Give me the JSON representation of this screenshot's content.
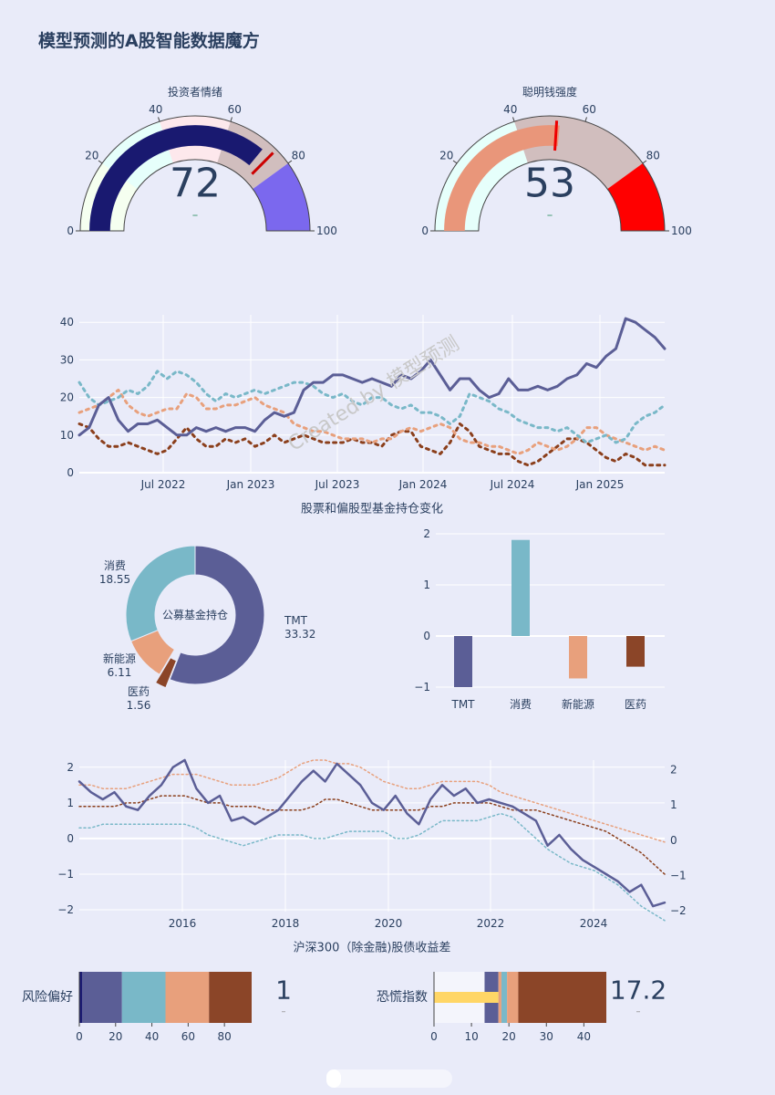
{
  "page": {
    "title": "模型预测的A股智能数据魔方",
    "watermark": "Created by 模型预测"
  },
  "chart_data": [
    {
      "type": "gauge",
      "id": "sentiment",
      "title": "投资者情绪",
      "value": 72,
      "delta": "–",
      "range": [
        0,
        100
      ],
      "ticks": [
        0,
        20,
        40,
        60,
        80,
        100
      ],
      "steps": [
        {
          "range": [
            0,
            20
          ],
          "color": "#f5fff0"
        },
        {
          "range": [
            20,
            40
          ],
          "color": "#e6fffb"
        },
        {
          "range": [
            40,
            60
          ],
          "color": "#fde8ec"
        },
        {
          "range": [
            60,
            80
          ],
          "color": "#d1bebe"
        },
        {
          "range": [
            80,
            100
          ],
          "color": "#7b68ee"
        }
      ],
      "bar_color": "#191970",
      "threshold": 75,
      "threshold_color": "#cc0000"
    },
    {
      "type": "gauge",
      "id": "smart-money",
      "title": "聪明钱强度",
      "value": 53,
      "delta": "–",
      "range": [
        0,
        100
      ],
      "ticks": [
        0,
        20,
        40,
        60,
        80,
        100
      ],
      "steps": [
        {
          "range": [
            0,
            20
          ],
          "color": "#e6fffb"
        },
        {
          "range": [
            20,
            40
          ],
          "color": "#e6fffb"
        },
        {
          "range": [
            40,
            80
          ],
          "color": "#d1bebe"
        },
        {
          "range": [
            80,
            100
          ],
          "color": "#ff0000"
        }
      ],
      "bar_color": "#e9967a",
      "threshold": 52,
      "threshold_color": "#ee0000"
    },
    {
      "type": "line",
      "id": "holdings",
      "title": "股票和偏股型基金持仓变化",
      "x_ticks": [
        "Jul 2022",
        "Jan 2023",
        "Jul 2023",
        "Jan 2024",
        "Jul 2024",
        "Jan 2025"
      ],
      "y_ticks": [
        0,
        10,
        20,
        30,
        40
      ],
      "ylim": [
        0,
        42
      ],
      "series": [
        {
          "color": "#5b5e96",
          "style": "solid",
          "values": [
            10,
            12,
            18,
            20,
            14,
            11,
            13,
            13,
            14,
            12,
            10,
            10,
            12,
            11,
            12,
            11,
            12,
            12,
            11,
            14,
            16,
            15,
            16,
            22,
            24,
            24,
            26,
            26,
            25,
            24,
            25,
            24,
            23,
            26,
            25,
            27,
            30,
            26,
            22,
            25,
            25,
            22,
            20,
            21,
            25,
            22,
            22,
            23,
            22,
            23,
            25,
            26,
            29,
            28,
            31,
            33,
            41,
            40,
            38,
            36,
            33
          ]
        },
        {
          "color": "#79b8c8",
          "style": "dot",
          "values": [
            24,
            20,
            18,
            19,
            20,
            22,
            21,
            23,
            27,
            25,
            27,
            26,
            24,
            21,
            19,
            21,
            20,
            21,
            22,
            21,
            22,
            23,
            24,
            24,
            23,
            21,
            20,
            21,
            19,
            18,
            20,
            20,
            18,
            17,
            18,
            16,
            16,
            15,
            13,
            15,
            21,
            20,
            19,
            17,
            16,
            14,
            13,
            12,
            12,
            11,
            12,
            10,
            8,
            9,
            10,
            8,
            9,
            13,
            15,
            16,
            18
          ]
        },
        {
          "color": "#e8a07c",
          "style": "dot",
          "values": [
            16,
            17,
            18,
            20,
            22,
            18,
            16,
            15,
            16,
            17,
            17,
            21,
            20,
            17,
            17,
            18,
            18,
            19,
            20,
            18,
            17,
            16,
            13,
            12,
            11,
            11,
            10,
            9,
            9,
            9,
            8,
            9,
            9,
            11,
            12,
            11,
            12,
            13,
            12,
            9,
            8,
            8,
            7,
            7,
            6,
            5,
            6,
            8,
            7,
            6,
            7,
            9,
            12,
            12,
            10,
            9,
            8,
            7,
            6,
            7,
            6
          ]
        },
        {
          "color": "#8b3f1c",
          "style": "dot",
          "values": [
            13,
            12,
            9,
            7,
            7,
            8,
            7,
            6,
            5,
            6,
            9,
            12,
            9,
            7,
            7,
            9,
            8,
            9,
            7,
            8,
            10,
            8,
            9,
            10,
            9,
            8,
            8,
            8,
            9,
            8,
            8,
            7,
            10,
            11,
            11,
            7,
            6,
            5,
            8,
            13,
            11,
            7,
            6,
            5,
            5,
            3,
            2,
            3,
            5,
            7,
            9,
            9,
            8,
            6,
            4,
            3,
            5,
            4,
            2,
            2,
            2
          ]
        }
      ]
    },
    {
      "type": "pie",
      "id": "fund-holdings",
      "center_label": "公募基金持仓",
      "slices": [
        {
          "name": "TMT",
          "value": 33.32,
          "color": "#5b5e96"
        },
        {
          "name": "医药",
          "value": 1.56,
          "color": "#8b4528"
        },
        {
          "name": "新能源",
          "value": 6.11,
          "color": "#e8a07c"
        },
        {
          "name": "消费",
          "value": 18.55,
          "color": "#79b8c8"
        }
      ],
      "value_labels": [
        "33.32",
        "1.56",
        "6.11",
        "18.55"
      ]
    },
    {
      "type": "bar",
      "id": "holding-change",
      "categories": [
        "TMT",
        "消费",
        "新能源",
        "医药"
      ],
      "values": [
        -1.0,
        1.88,
        -0.83,
        -0.6
      ],
      "colors": [
        "#5b5e96",
        "#79b8c8",
        "#e8a07c",
        "#8b4528"
      ],
      "y_ticks": [
        -1,
        0,
        1,
        2
      ],
      "ylim": [
        -1.1,
        2.1
      ]
    },
    {
      "type": "line",
      "id": "equity-bond-spread",
      "title": "沪深300（除金融)股债收益差",
      "x_ticks": [
        "2016",
        "2018",
        "2020",
        "2022",
        "2024"
      ],
      "y_ticks_left": [
        -2,
        -1,
        0,
        1,
        2
      ],
      "y_ticks_right": [
        -2,
        -1,
        0,
        1,
        2
      ],
      "series": [
        {
          "color": "#5b5e96",
          "style": "solid",
          "width": 2.5,
          "values": [
            1.6,
            1.3,
            1.1,
            1.3,
            0.9,
            0.8,
            1.2,
            1.5,
            2.0,
            2.2,
            1.4,
            1.0,
            1.2,
            0.5,
            0.6,
            0.4,
            0.6,
            0.8,
            1.2,
            1.6,
            1.9,
            1.6,
            2.1,
            1.8,
            1.5,
            1.0,
            0.8,
            1.2,
            0.7,
            0.4,
            1.1,
            1.5,
            1.2,
            1.4,
            1.0,
            1.1,
            1.0,
            0.9,
            0.7,
            0.5,
            -0.2,
            0.1,
            -0.3,
            -0.6,
            -0.8,
            -1.0,
            -1.2,
            -1.5,
            -1.3,
            -1.9,
            -1.8
          ]
        },
        {
          "color": "#e8a07c",
          "style": "dot",
          "width": 1.5,
          "values": [
            1.5,
            1.5,
            1.4,
            1.4,
            1.4,
            1.5,
            1.6,
            1.7,
            1.8,
            1.8,
            1.8,
            1.7,
            1.6,
            1.5,
            1.5,
            1.5,
            1.6,
            1.7,
            1.9,
            2.1,
            2.2,
            2.2,
            2.1,
            2.1,
            2.0,
            1.8,
            1.6,
            1.5,
            1.4,
            1.4,
            1.5,
            1.6,
            1.6,
            1.6,
            1.6,
            1.5,
            1.3,
            1.2,
            1.1,
            1.0,
            0.9,
            0.8,
            0.7,
            0.6,
            0.5,
            0.4,
            0.3,
            0.2,
            0.1,
            0.0,
            -0.1
          ]
        },
        {
          "color": "#8b3f1c",
          "style": "dot",
          "width": 1.5,
          "values": [
            0.9,
            0.9,
            0.9,
            0.9,
            1.0,
            1.0,
            1.1,
            1.2,
            1.2,
            1.2,
            1.1,
            1.0,
            1.0,
            0.9,
            0.9,
            0.9,
            0.8,
            0.8,
            0.8,
            0.8,
            0.9,
            1.1,
            1.1,
            1.0,
            0.9,
            0.8,
            0.8,
            0.8,
            0.8,
            0.8,
            0.9,
            0.9,
            1.0,
            1.0,
            1.0,
            1.0,
            0.9,
            0.8,
            0.8,
            0.8,
            0.7,
            0.6,
            0.5,
            0.4,
            0.3,
            0.2,
            0.0,
            -0.2,
            -0.4,
            -0.7,
            -1.0
          ]
        },
        {
          "color": "#79b8c8",
          "style": "dot",
          "width": 1.5,
          "values": [
            0.3,
            0.3,
            0.4,
            0.4,
            0.4,
            0.4,
            0.4,
            0.4,
            0.4,
            0.4,
            0.3,
            0.1,
            0.0,
            -0.1,
            -0.2,
            -0.1,
            0.0,
            0.1,
            0.1,
            0.1,
            0.0,
            0.0,
            0.1,
            0.2,
            0.2,
            0.2,
            0.2,
            0.0,
            0.0,
            0.1,
            0.3,
            0.5,
            0.5,
            0.5,
            0.5,
            0.6,
            0.7,
            0.6,
            0.3,
            0.0,
            -0.3,
            -0.5,
            -0.7,
            -0.8,
            -0.9,
            -1.1,
            -1.3,
            -1.6,
            -1.9,
            -2.1,
            -2.3
          ]
        }
      ]
    },
    {
      "type": "bar",
      "id": "risk-appetite",
      "orientation": "horizontal",
      "label": "风险偏好",
      "value": 1,
      "delta": "–",
      "x_ticks": [
        0,
        20,
        40,
        60,
        80
      ],
      "xlim": [
        0,
        95
      ],
      "segments": [
        {
          "start": 0,
          "end": 1.5,
          "color": "#191970"
        },
        {
          "start": 1.5,
          "end": 23.5,
          "color": "#5b5e96"
        },
        {
          "start": 23.5,
          "end": 47.5,
          "color": "#79b8c8"
        },
        {
          "start": 47.5,
          "end": 71.5,
          "color": "#e8a07c"
        },
        {
          "start": 71.5,
          "end": 95,
          "color": "#8b4528"
        }
      ]
    },
    {
      "type": "bar",
      "id": "fear-index",
      "orientation": "horizontal",
      "label": "恐慌指数",
      "value": 17.2,
      "delta": "–",
      "x_ticks": [
        0,
        10,
        20,
        30,
        40
      ],
      "xlim": [
        0,
        46
      ],
      "segments": [
        {
          "start": 0,
          "end": 13.5,
          "color": "#f4f5fc"
        },
        {
          "start": 13.5,
          "end": 17.2,
          "color": "#5b5e96"
        },
        {
          "start": 17.2,
          "end": 18,
          "color": "#e8a07c"
        },
        {
          "start": 18,
          "end": 19.5,
          "color": "#79b8c8"
        },
        {
          "start": 19.5,
          "end": 22.5,
          "color": "#e8a07c"
        },
        {
          "start": 22.5,
          "end": 46,
          "color": "#8b4528"
        }
      ],
      "indicator": {
        "start": 0,
        "end": 17.2,
        "color": "#ffd666"
      }
    }
  ]
}
